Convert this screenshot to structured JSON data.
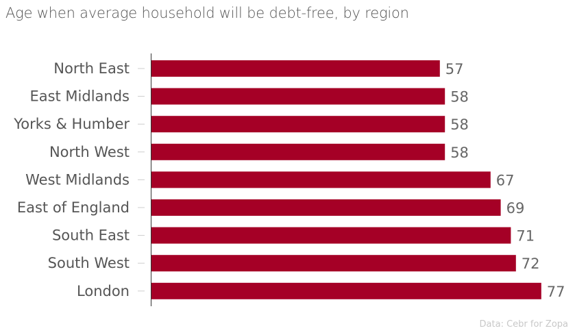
{
  "chart_data": {
    "type": "bar",
    "orientation": "horizontal",
    "title": "Age when average household will be debt-free, by region",
    "categories": [
      "North East",
      "East Midlands",
      "Yorks & Humber",
      "North West",
      "West Midlands",
      "East of England",
      "South East",
      "South West",
      "London"
    ],
    "values": [
      57,
      58,
      58,
      58,
      67,
      69,
      71,
      72,
      77
    ],
    "xlim": [
      0,
      83
    ],
    "grid": false,
    "data_labels": true,
    "bar_color": "#a50026",
    "source": "Data: Cebr for Zopa"
  }
}
